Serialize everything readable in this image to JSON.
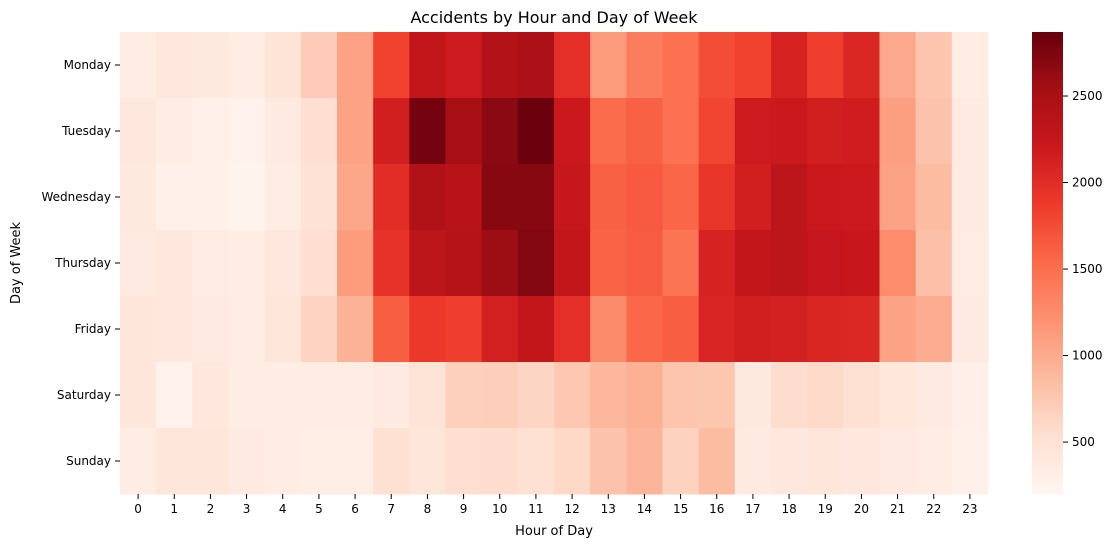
{
  "chart_data": {
    "type": "heatmap",
    "title": "Accidents by Hour and Day of Week",
    "xlabel": "Hour of Day",
    "ylabel": "Day of Week",
    "x_categories": [
      "0",
      "1",
      "2",
      "3",
      "4",
      "5",
      "6",
      "7",
      "8",
      "9",
      "10",
      "11",
      "12",
      "13",
      "14",
      "15",
      "16",
      "17",
      "18",
      "19",
      "20",
      "21",
      "22",
      "23"
    ],
    "y_categories": [
      "Monday",
      "Tuesday",
      "Wednesday",
      "Thursday",
      "Friday",
      "Saturday",
      "Sunday"
    ],
    "colormap": "Reds",
    "vmin": 200,
    "vmax": 2870,
    "colorbar_ticks": [
      500,
      1000,
      1500,
      2000,
      2500
    ],
    "values": [
      [
        350,
        420,
        390,
        340,
        480,
        720,
        1080,
        1820,
        2270,
        2180,
        2420,
        2480,
        1980,
        1130,
        1380,
        1480,
        1750,
        1820,
        2100,
        1850,
        2060,
        1020,
        780,
        330
      ],
      [
        410,
        330,
        280,
        260,
        370,
        540,
        1060,
        2150,
        2800,
        2500,
        2680,
        2850,
        2200,
        1520,
        1600,
        1480,
        1800,
        2180,
        2200,
        2150,
        2160,
        1100,
        800,
        380
      ],
      [
        390,
        280,
        280,
        230,
        330,
        500,
        1030,
        2000,
        2440,
        2370,
        2690,
        2700,
        2250,
        1600,
        1650,
        1560,
        1930,
        2150,
        2330,
        2200,
        2190,
        1070,
        860,
        380
      ],
      [
        380,
        400,
        360,
        340,
        420,
        540,
        1120,
        1950,
        2330,
        2390,
        2580,
        2720,
        2270,
        1580,
        1640,
        1450,
        2100,
        2280,
        2330,
        2260,
        2240,
        1250,
        830,
        360
      ],
      [
        440,
        410,
        370,
        350,
        450,
        640,
        940,
        1620,
        1900,
        1850,
        2140,
        2280,
        1980,
        1260,
        1550,
        1620,
        2080,
        2150,
        2130,
        2070,
        2050,
        1060,
        980,
        380
      ],
      [
        440,
        240,
        420,
        340,
        330,
        330,
        330,
        380,
        480,
        680,
        690,
        630,
        760,
        900,
        960,
        780,
        770,
        390,
        560,
        590,
        520,
        430,
        380,
        290
      ],
      [
        320,
        450,
        440,
        380,
        330,
        310,
        310,
        520,
        460,
        550,
        560,
        520,
        600,
        800,
        920,
        660,
        860,
        380,
        410,
        440,
        410,
        370,
        350,
        280
      ]
    ]
  }
}
